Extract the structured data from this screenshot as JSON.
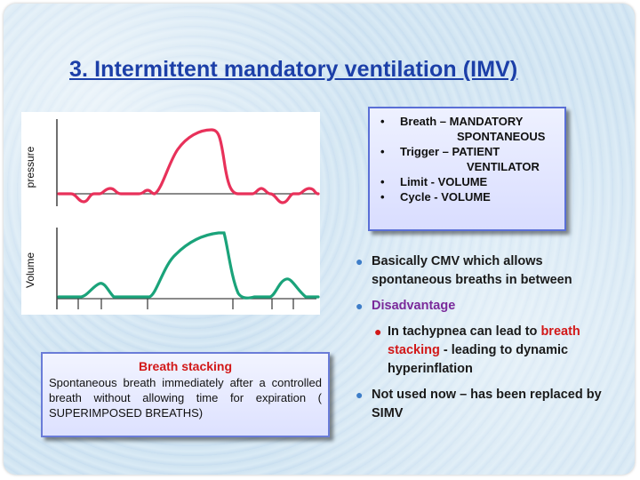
{
  "title": "3. Intermittent mandatory ventilation (IMV)",
  "graph": {
    "pressure_label": "pressure",
    "volume_label": "Volume",
    "pressure_color": "#e8315a",
    "volume_color": "#1aa37a"
  },
  "params": {
    "items": [
      {
        "label": "Breath – MANDATORY",
        "cont": "SPONTANEOUS"
      },
      {
        "label": "Trigger – PATIENT",
        "cont": "VENTILATOR"
      },
      {
        "label": "Limit - VOLUME",
        "cont": ""
      },
      {
        "label": "Cycle - VOLUME",
        "cont": ""
      }
    ]
  },
  "stacking": {
    "title": "Breath stacking",
    "body": "Spontaneous breath immediately after a controlled breath without allowing time for expiration ( SUPERIMPOSED BREATHS)"
  },
  "bullets": {
    "b1": "Basically CMV which allows spontaneous breaths in between",
    "b2": "Disadvantage",
    "b3_pre": "In tachypnea can lead to ",
    "b3_red": "breath stacking",
    "b3_post": " - leading to dynamic hyperinflation",
    "b4": "Not used now – has been replaced by SIMV"
  },
  "colors": {
    "title": "#1c3fa8",
    "accent_red": "#d21818",
    "accent_purple": "#7a2a9a",
    "bullet_blue": "#3d7dc8",
    "box_border": "#5a6fd6"
  }
}
